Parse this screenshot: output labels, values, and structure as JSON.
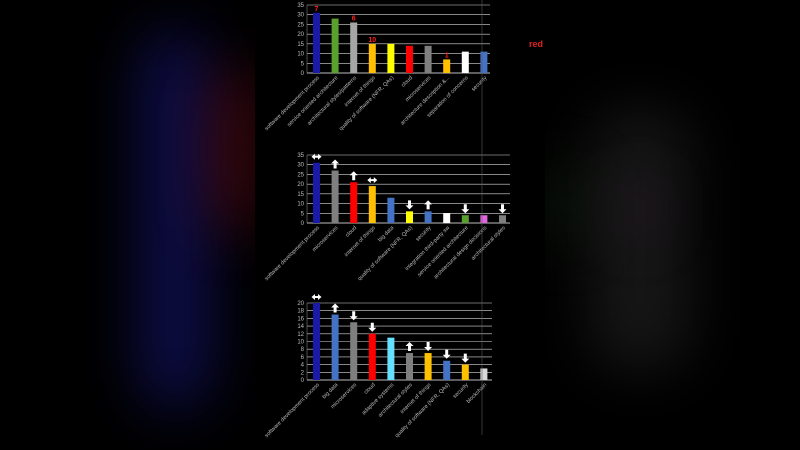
{
  "side_note": "red",
  "colors": {
    "grid": "#d9d9d9",
    "text": "#bfbfbf",
    "annotation": "#ff2020"
  },
  "chart_data": [
    {
      "type": "bar",
      "ylim": [
        0,
        35
      ],
      "yticks": [
        0,
        5,
        10,
        15,
        20,
        25,
        30,
        35
      ],
      "grid": true,
      "categories": [
        "software development process",
        "service oriented architecture",
        "architectural styles/patterns",
        "internet of things",
        "quality of software (NFR, QAs)",
        "cloud",
        "microservices",
        "architecture description &...",
        "separation of concerns",
        "security"
      ],
      "values": [
        31,
        28,
        26,
        15,
        15,
        14,
        14,
        7,
        11,
        11
      ],
      "colors": [
        "#1a1aa6",
        "#5aa02c",
        "#a6a6a6",
        "#ffc000",
        "#ffff00",
        "#ff0000",
        "#7f7f7f",
        "#ffc000",
        "#ffffff",
        "#4472c4"
      ],
      "data_labels": [
        "7",
        "",
        "6",
        "10",
        "",
        "",
        "",
        "1",
        "",
        ""
      ]
    },
    {
      "type": "bar",
      "ylim": [
        0,
        35
      ],
      "yticks": [
        0,
        5,
        10,
        15,
        20,
        25,
        30,
        35
      ],
      "grid": true,
      "categories": [
        "software development process",
        "microservices",
        "cloud",
        "internet of things",
        "big data",
        "quality of software (NFR, QAs)",
        "security",
        "integration third-party sw",
        "service oriented architecture",
        "architectural design decisions",
        "architectural styles"
      ],
      "values": [
        31,
        27,
        21,
        19,
        13,
        6,
        6,
        5,
        4,
        4,
        4
      ],
      "colors": [
        "#1a1aa6",
        "#7f7f7f",
        "#ff0000",
        "#ffc000",
        "#4472c4",
        "#ffff00",
        "#4472c4",
        "#ffffff",
        "#5aa02c",
        "#e066e0",
        "#7f7f7f"
      ],
      "trend": [
        "same",
        "up",
        "up",
        "same",
        "",
        "down",
        "up",
        "",
        "down",
        "",
        "down"
      ]
    },
    {
      "type": "bar",
      "ylim": [
        0,
        20
      ],
      "yticks": [
        0,
        2,
        4,
        6,
        8,
        10,
        12,
        14,
        16,
        18,
        20
      ],
      "grid": true,
      "categories": [
        "software development process",
        "big data",
        "microservices",
        "cloud",
        "adaptive systems",
        "architectural styles",
        "internet of things",
        "quality of software (NFR, QAs)",
        "security",
        "blockchain"
      ],
      "values": [
        20,
        17,
        15,
        12,
        11,
        7,
        7,
        5,
        4,
        3
      ],
      "colors": [
        "#1a1aa6",
        "#4472c4",
        "#7f7f7f",
        "#ff0000",
        "#66e0ff",
        "#7f7f7f",
        "#ffc000",
        "#4472c4",
        "#ffc000",
        "#d9d9d9"
      ],
      "trend": [
        "same",
        "up",
        "down",
        "down",
        "",
        "up",
        "down",
        "down",
        "down",
        ""
      ]
    }
  ]
}
